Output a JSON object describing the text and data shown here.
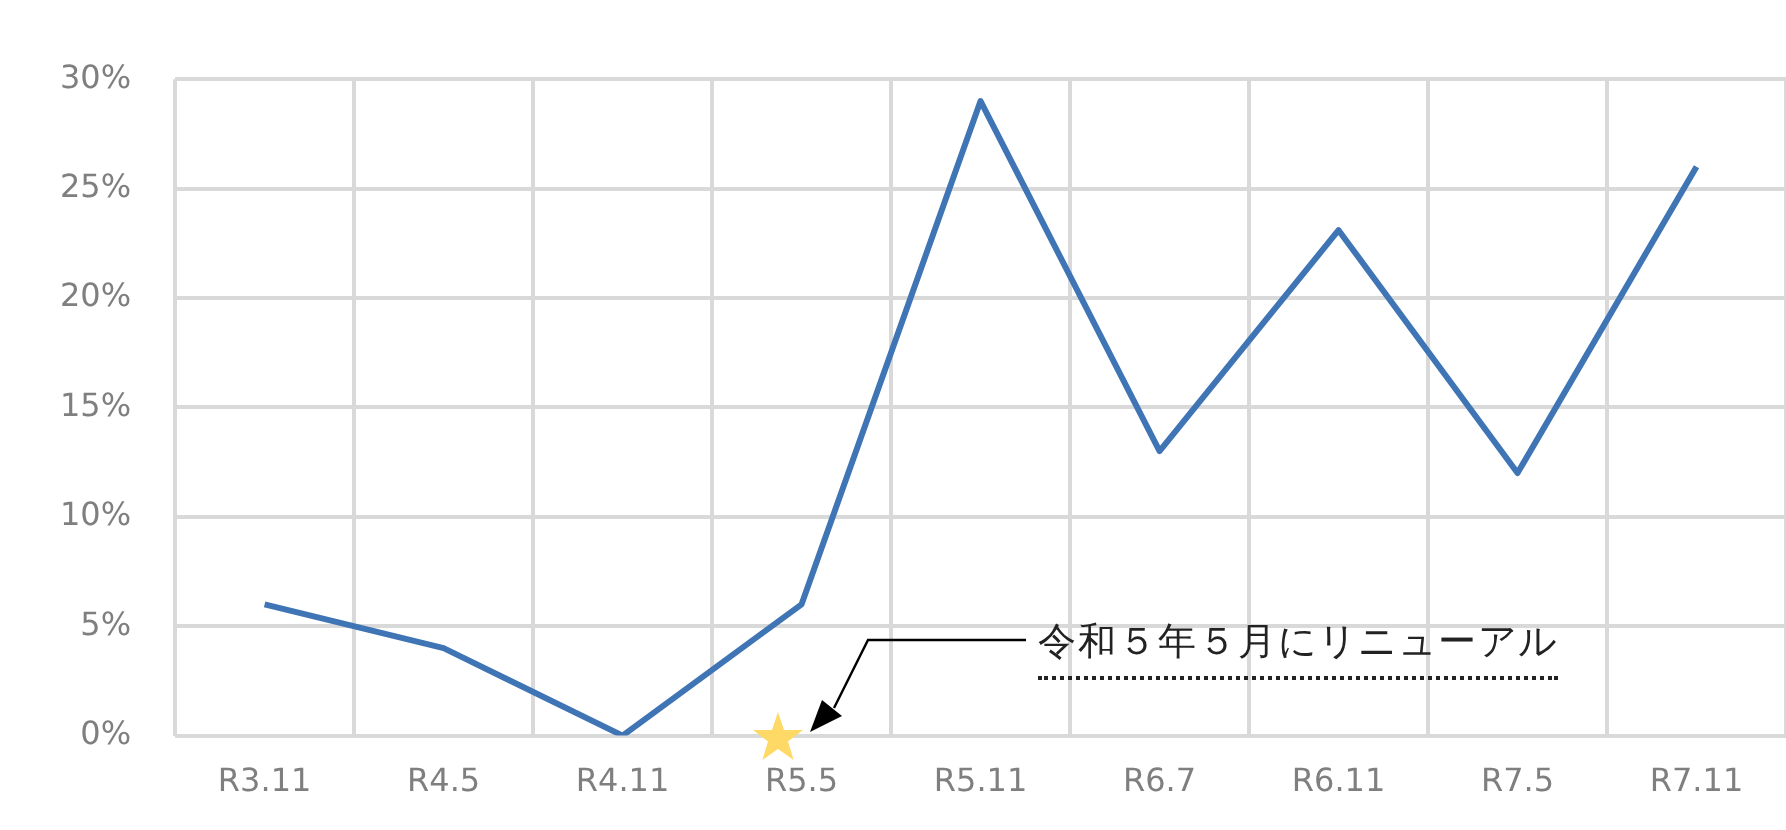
{
  "chart_data": {
    "type": "line",
    "categories": [
      "R3.11",
      "R4.5",
      "R4.11",
      "R5.5",
      "R5.11",
      "R6.7",
      "R6.11",
      "R7.5",
      "R7.11"
    ],
    "series": [
      {
        "color": "#3f75b5",
        "values": [
          6.0,
          4.0,
          0,
          6.0,
          29.0,
          13.0,
          23.1,
          12.0,
          26.0
        ]
      }
    ],
    "ylim": [
      0,
      30
    ],
    "yticks": [
      {
        "value": 0,
        "label": "0%"
      },
      {
        "value": 5,
        "label": "5%"
      },
      {
        "value": 10,
        "label": "10%"
      },
      {
        "value": 15,
        "label": "15%"
      },
      {
        "value": 20,
        "label": "20%"
      },
      {
        "value": 25,
        "label": "25%"
      },
      {
        "value": 30,
        "label": "30%"
      }
    ],
    "grid": true,
    "legend": false,
    "marker": "none",
    "line_style": "solid",
    "annotations": [
      "令和５年５月にリニューアル"
    ]
  }
}
